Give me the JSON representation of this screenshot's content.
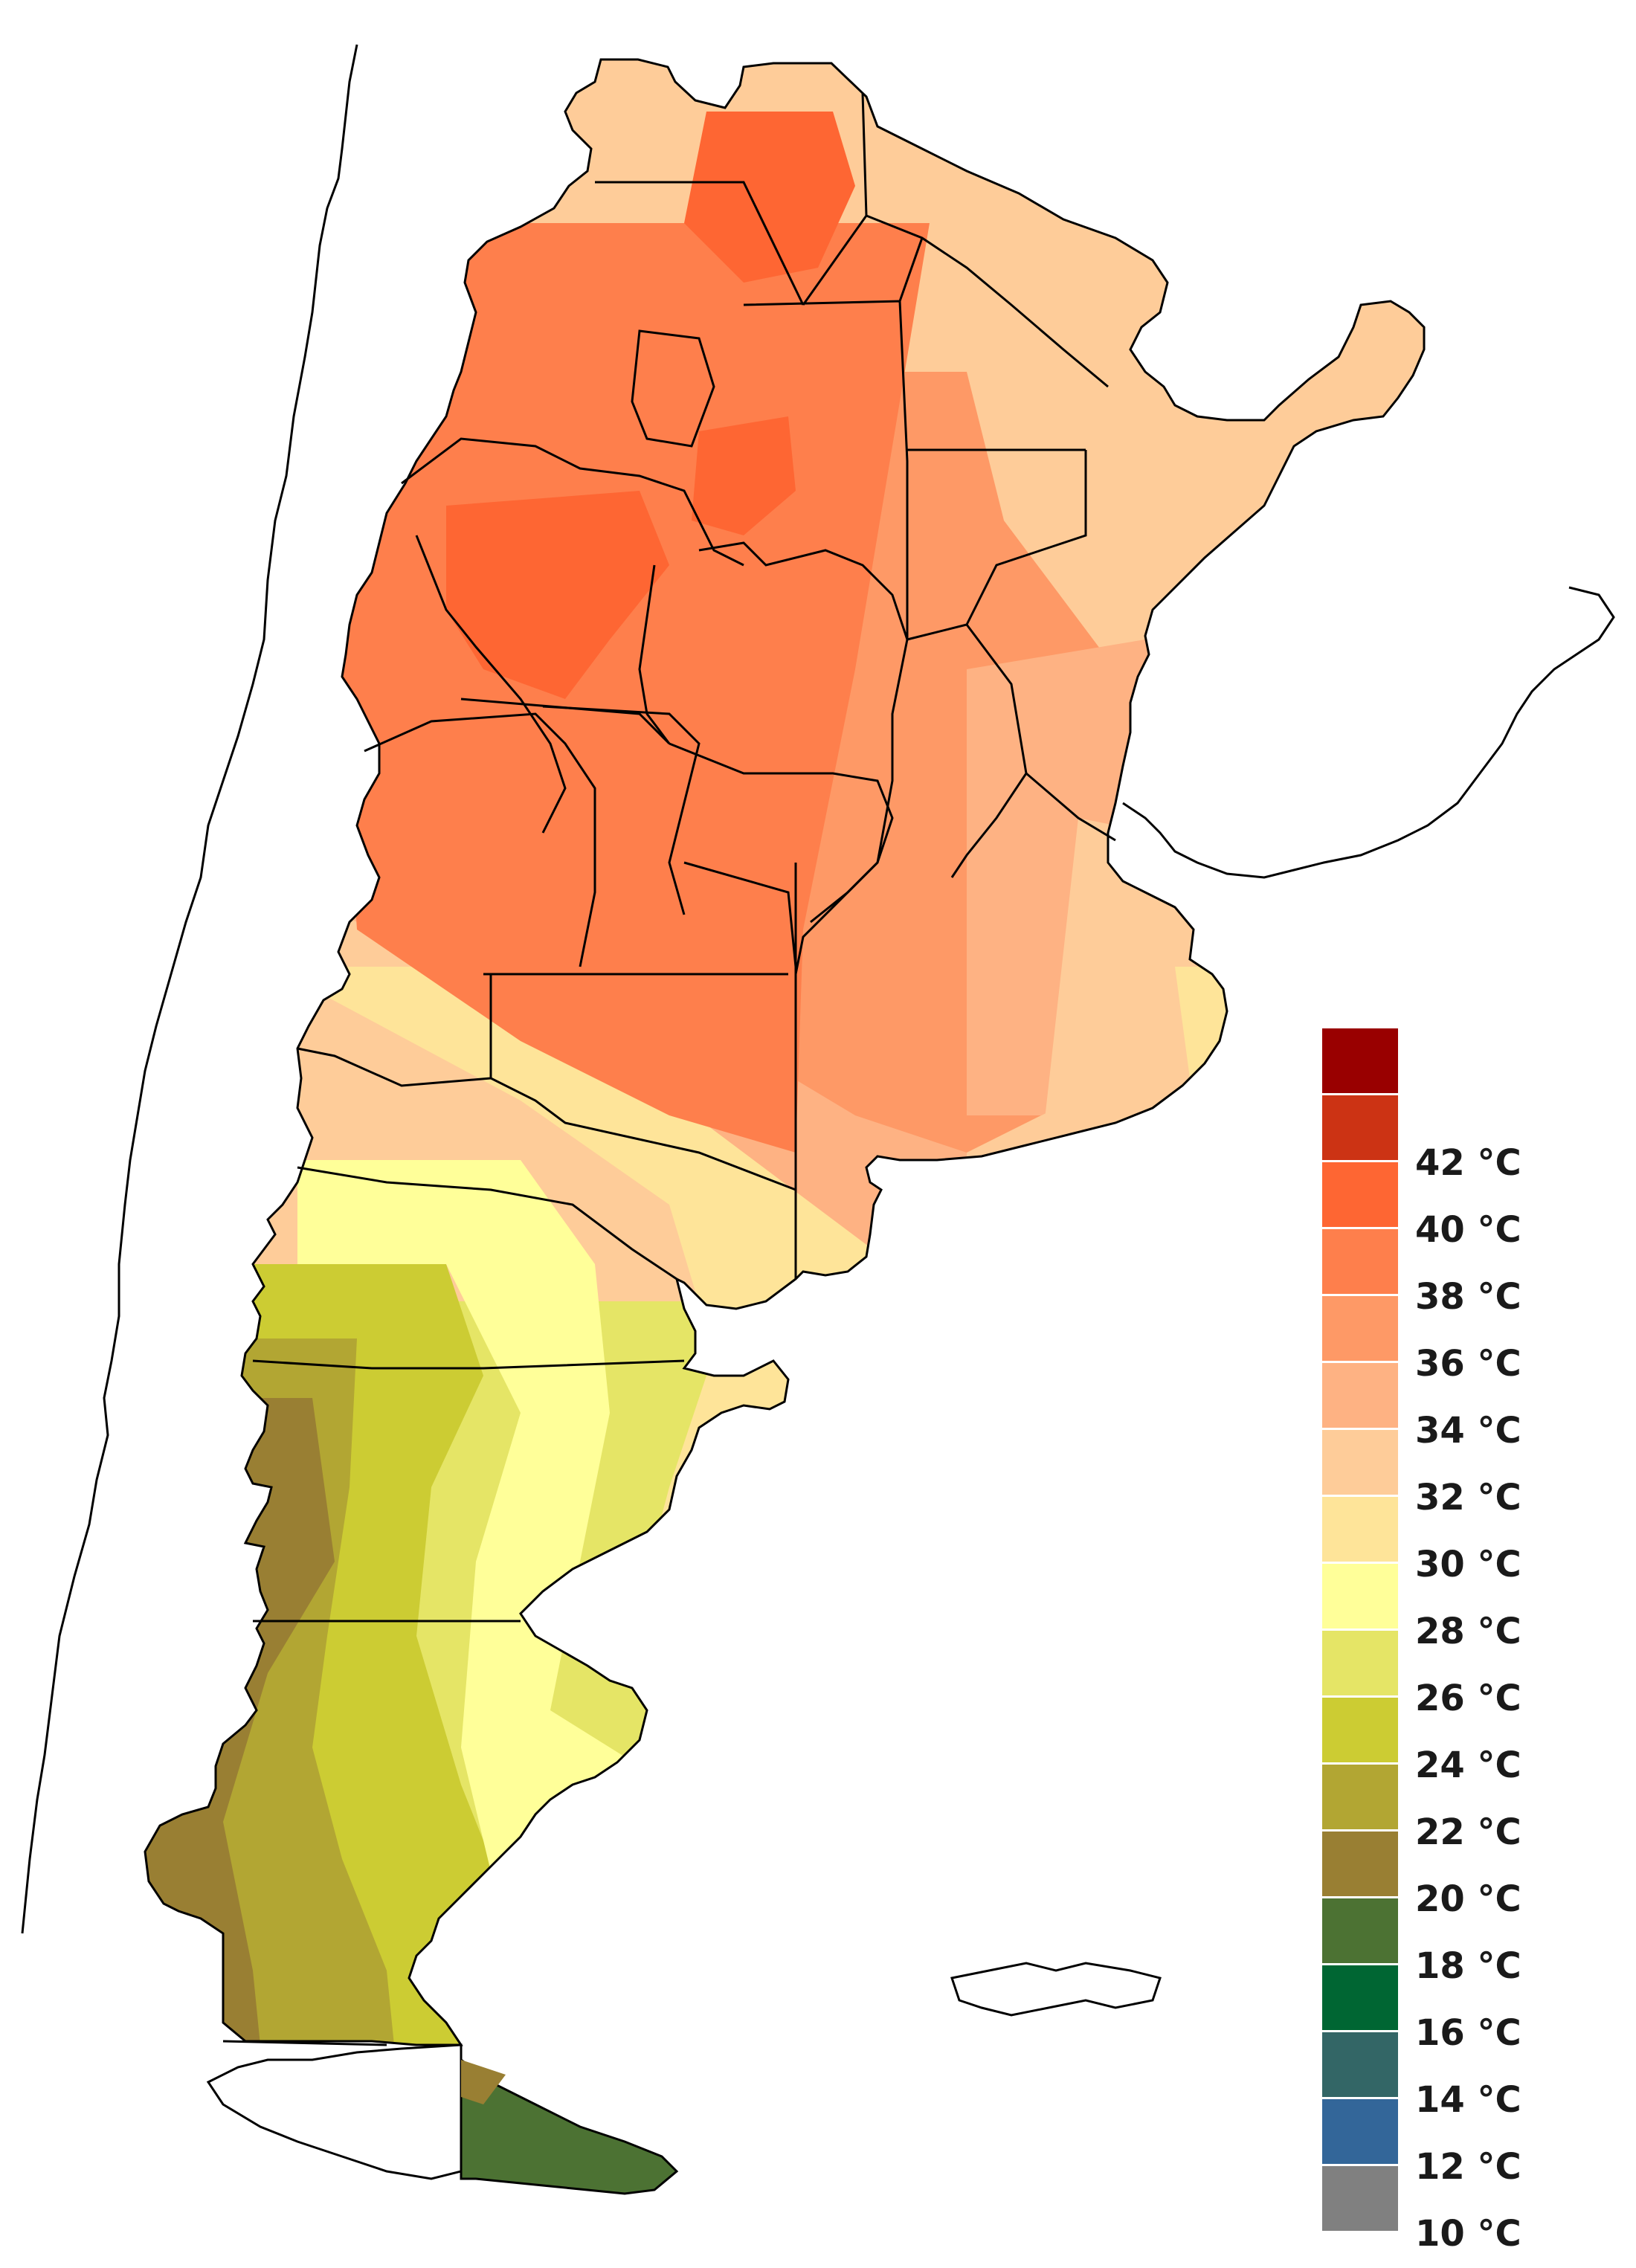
{
  "colors": {
    "background": "#ffffff",
    "province_border": "#000000",
    "ocean": "#ffffff",
    "neighbor_fill": "#ffffff"
  },
  "legend": {
    "unit": "°C",
    "bins": [
      {
        "from": 42,
        "label": "",
        "color": "#990000"
      },
      {
        "from": 40,
        "label": "42 °C",
        "color": "#cc3314"
      },
      {
        "from": 38,
        "label": "40 °C",
        "color": "#fe6633"
      },
      {
        "from": 36,
        "label": "38 °C",
        "color": "#fe7f4c"
      },
      {
        "from": 34,
        "label": "36 °C",
        "color": "#fe9966"
      },
      {
        "from": 32,
        "label": "34 °C",
        "color": "#feb283"
      },
      {
        "from": 30,
        "label": "32 °C",
        "color": "#fecc99"
      },
      {
        "from": 28,
        "label": "30 °C",
        "color": "#fee499"
      },
      {
        "from": 26,
        "label": "28 °C",
        "color": "#ffff99"
      },
      {
        "from": 24,
        "label": "26 °C",
        "color": "#e5e566"
      },
      {
        "from": 22,
        "label": "24 °C",
        "color": "#cccc33"
      },
      {
        "from": 20,
        "label": "22 °C",
        "color": "#b2a633"
      },
      {
        "from": 18,
        "label": "20 °C",
        "color": "#997f33"
      },
      {
        "from": 16,
        "label": "18 °C",
        "color": "#4c7233"
      },
      {
        "from": 14,
        "label": "16 °C",
        "color": "#006633"
      },
      {
        "from": 12,
        "label": "14 °C",
        "color": "#336666"
      },
      {
        "from": 10,
        "label": "12 °C",
        "color": "#336699"
      },
      {
        "from": 0,
        "label": "10 °C",
        "color": "#808080"
      }
    ]
  },
  "map": {
    "title": "",
    "region": "Argentina",
    "variable": "temperature"
  }
}
